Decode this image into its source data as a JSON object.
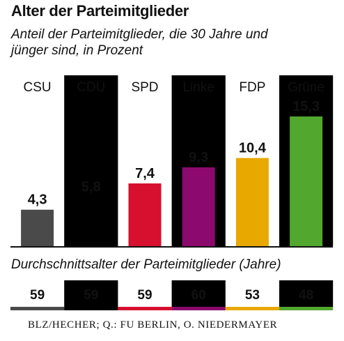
{
  "title": "Alter der Parteimitglieder",
  "subtitle_line1": "Anteil der Parteimitglieder, die 30 Jahre und",
  "subtitle_line2": "jünger sind, in Prozent",
  "age_subtitle": "Durchschnittsalter der Parteimitglieder (Jahre)",
  "source": "BLZ/HECHER; Q.: FU BERLIN, O. NIEDERMAYER",
  "chart_data": [
    {
      "type": "bar",
      "title": "Alter der Parteimitglieder",
      "subtitle": "Anteil der Parteimitglieder, die 30 Jahre und jünger sind, in Prozent",
      "categories": [
        "CSU",
        "CDU",
        "SPD",
        "Linke",
        "FDP",
        "Grüne"
      ],
      "values": [
        4.3,
        5.8,
        7.4,
        9.3,
        10.4,
        15.3
      ],
      "value_labels": [
        "4,3",
        "5,8",
        "7,4",
        "9,3",
        "10,4",
        "15,3"
      ],
      "colors": [
        "#4a4a4a",
        "#000000",
        "#d6102e",
        "#8c0a6e",
        "#e8a800",
        "#52a82e"
      ],
      "ylim": [
        0,
        15.3
      ],
      "grid": false,
      "legend": "none",
      "column_shading": "alternating"
    },
    {
      "type": "table",
      "title": "Durchschnittsalter der Parteimitglieder (Jahre)",
      "categories": [
        "CSU",
        "CDU",
        "SPD",
        "Linke",
        "FDP",
        "Grüne"
      ],
      "values": [
        59,
        59,
        59,
        60,
        53,
        48
      ],
      "colors": [
        "#4a4a4a",
        "#000000",
        "#d6102e",
        "#8c0a6e",
        "#e8a800",
        "#52a82e"
      ]
    }
  ],
  "colors": {
    "shade": "#f1efe2",
    "text": "#111111",
    "axis": "#111111"
  }
}
